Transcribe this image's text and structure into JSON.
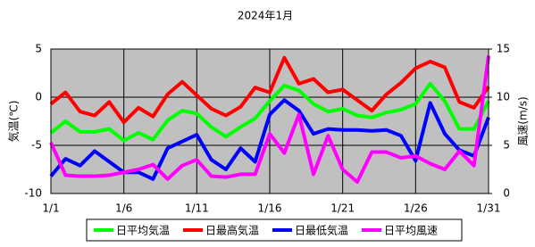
{
  "chart_data": {
    "type": "line",
    "title": "2024年1月",
    "y_label": "気温(℃)",
    "y2_label": "風速(m/s)",
    "categories": [
      "1/1",
      null,
      null,
      null,
      null,
      "1/6",
      null,
      null,
      null,
      null,
      "1/11",
      null,
      null,
      null,
      null,
      "1/16",
      null,
      null,
      null,
      null,
      "1/21",
      null,
      null,
      null,
      null,
      "1/26",
      null,
      null,
      null,
      null,
      "1/31"
    ],
    "ylim": [
      -10,
      5
    ],
    "yticks": [
      5,
      0,
      -5,
      -10
    ],
    "y2lim": [
      0,
      15
    ],
    "y2ticks": [
      0,
      5,
      10,
      15
    ],
    "grid": true,
    "legend": "bottom",
    "series": [
      {
        "name": "日平均気温",
        "color": "#00ff00",
        "values": [
          -3.7,
          -2.5,
          -3.6,
          -3.6,
          -3.3,
          -4.5,
          -3.7,
          -4.4,
          -2.4,
          -1.4,
          -1.7,
          -3.1,
          -4.1,
          -3.1,
          -2.2,
          -0.4,
          1.2,
          0.7,
          -0.7,
          -1.5,
          -1.2,
          -1.9,
          -2.1,
          -1.6,
          -1.3,
          -0.7,
          1.4,
          -0.4,
          -3.3,
          -3.3,
          -0.4
        ]
      },
      {
        "name": "日最高気温",
        "color": "#ff0000",
        "values": [
          -0.7,
          0.5,
          -1.5,
          -1.9,
          -0.5,
          -2.6,
          -1.1,
          -2.0,
          0.3,
          1.6,
          0.2,
          -1.2,
          -1.9,
          -1.0,
          1.0,
          0.5,
          4.1,
          1.4,
          1.9,
          0.5,
          0.8,
          -0.3,
          -1.4,
          0.3,
          1.5,
          3.0,
          3.7,
          3.1,
          -0.5,
          -1.1,
          1.1
        ]
      },
      {
        "name": "日最低気温",
        "color": "#0000ff",
        "values": [
          -8.2,
          -6.4,
          -7.1,
          -5.6,
          -6.7,
          -7.8,
          -7.8,
          -8.5,
          -5.3,
          -4.6,
          -3.9,
          -6.5,
          -7.5,
          -5.3,
          -6.7,
          -1.8,
          -0.3,
          -1.4,
          -3.8,
          -3.3,
          -3.4,
          -3.4,
          -3.5,
          -3.4,
          -4.0,
          -6.6,
          -0.6,
          -3.8,
          -5.5,
          -6.1,
          -2.1
        ]
      },
      {
        "name": "日平均風速",
        "color": "#ff00ff",
        "axis": "y2",
        "values": [
          5.3,
          1.9,
          1.8,
          1.8,
          1.9,
          2.2,
          2.5,
          3.0,
          1.5,
          2.9,
          3.5,
          1.8,
          1.7,
          2.0,
          2.0,
          6.2,
          4.2,
          8.2,
          2.0,
          6.0,
          2.5,
          1.2,
          4.3,
          4.3,
          3.7,
          3.9,
          3.1,
          2.5,
          4.4,
          2.9,
          14.3
        ]
      }
    ]
  }
}
